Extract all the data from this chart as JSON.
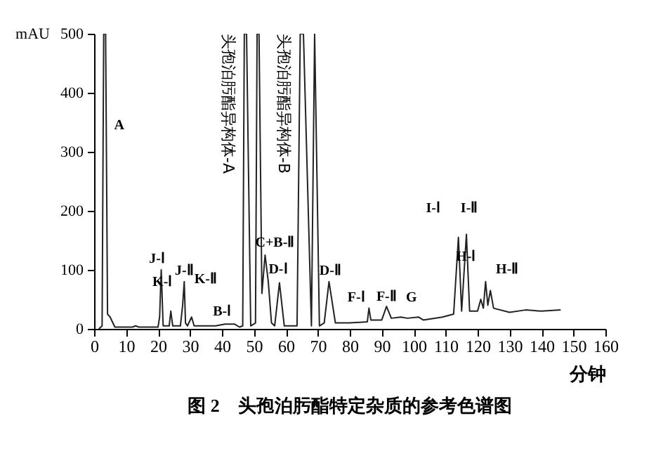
{
  "chart_data": {
    "type": "line",
    "xlabel": "分钟",
    "ylabel": "mAU",
    "xlim": [
      0,
      160
    ],
    "ylim": [
      0,
      500
    ],
    "xticks": [
      0,
      10,
      20,
      30,
      40,
      50,
      60,
      70,
      80,
      90,
      100,
      110,
      120,
      130,
      140,
      150,
      160
    ],
    "yticks": [
      0,
      100,
      200,
      300,
      400,
      500
    ],
    "grid": false,
    "marker": "none",
    "line_style": "solid",
    "series": [
      {
        "color": "#222222",
        "x": [
          1.5,
          2.5,
          3,
          3.6,
          4.2,
          5,
          6.5,
          12,
          13,
          14,
          20,
          20.5,
          21,
          21.6,
          23.5,
          24,
          24.6,
          27,
          27.7,
          28.2,
          28.6,
          29.2,
          30.5,
          31.3,
          38,
          41,
          44,
          45.5,
          46.5,
          47,
          47.7,
          49,
          50.5,
          51,
          51.6,
          52.5,
          53.5,
          54.5,
          55.5,
          56.5,
          58,
          59.5,
          63.5,
          64.5,
          65.5,
          68,
          69,
          70.5,
          72,
          73.5,
          75.5,
          80,
          85.5,
          86,
          86.6,
          90,
          91.5,
          93,
          96,
          98,
          101.5,
          103,
          109,
          112.5,
          114,
          115,
          116.5,
          117.5,
          120,
          121,
          121.8,
          122.5,
          123.2,
          124,
          125,
          130,
          135,
          140,
          146
        ],
        "values": [
          0,
          5,
          500,
          500,
          25,
          20,
          3,
          3,
          5,
          3,
          3,
          20,
          100,
          5,
          5,
          30,
          5,
          5,
          40,
          80,
          10,
          5,
          20,
          5,
          5,
          8,
          8,
          3,
          5,
          500,
          500,
          5,
          10,
          500,
          500,
          60,
          125,
          80,
          10,
          5,
          78,
          5,
          5,
          500,
          500,
          5,
          500,
          5,
          10,
          80,
          10,
          10,
          12,
          35,
          15,
          15,
          38,
          18,
          20,
          18,
          20,
          15,
          20,
          25,
          155,
          30,
          160,
          30,
          30,
          50,
          35,
          80,
          40,
          65,
          35,
          28,
          32,
          30,
          32
        ]
      }
    ],
    "annotations": [
      {
        "text": "A",
        "x": 3,
        "y": 300
      },
      {
        "text": "J-Ⅰ",
        "x": 21,
        "y": 100
      },
      {
        "text": "K-Ⅰ",
        "x": 24,
        "y": 30
      },
      {
        "text": "J-Ⅱ",
        "x": 28.2,
        "y": 80
      },
      {
        "text": "K-Ⅱ",
        "x": 30.5,
        "y": 20
      },
      {
        "text": "B-Ⅰ",
        "x": 44,
        "y": 8
      },
      {
        "text": "头孢泊肟酯异构体-A",
        "x": 47,
        "y": 500
      },
      {
        "text": "C+B-Ⅱ",
        "x": 53.5,
        "y": 125
      },
      {
        "text": "D-Ⅰ",
        "x": 54.5,
        "y": 80
      },
      {
        "text": "头孢泊肟酯异构体-B",
        "x": 64.5,
        "y": 500
      },
      {
        "text": "D-Ⅱ",
        "x": 73.5,
        "y": 80
      },
      {
        "text": "F-Ⅰ",
        "x": 86,
        "y": 35
      },
      {
        "text": "F-Ⅱ",
        "x": 91.5,
        "y": 38
      },
      {
        "text": "G",
        "x": 101.5,
        "y": 20
      },
      {
        "text": "I-Ⅰ",
        "x": 114,
        "y": 155
      },
      {
        "text": "I-Ⅱ",
        "x": 116.5,
        "y": 160
      },
      {
        "text": "H-Ⅰ",
        "x": 122.5,
        "y": 80
      },
      {
        "text": "H-Ⅱ",
        "x": 124,
        "y": 65
      },
      "图 2　头孢泊肟酯特定杂质的参考色谱图"
    ]
  }
}
